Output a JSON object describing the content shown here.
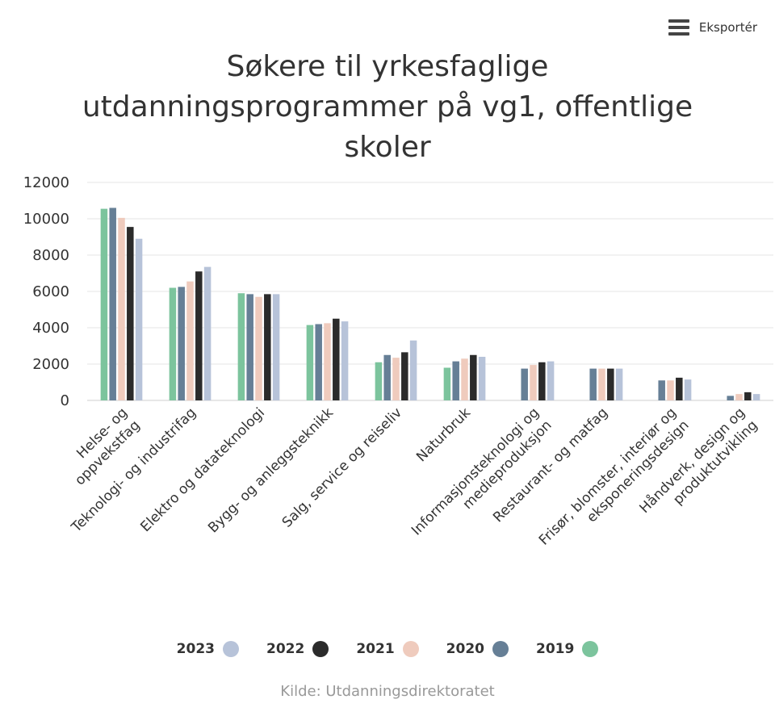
{
  "export": {
    "label": "Eksportér",
    "icon": "hamburger-menu-icon"
  },
  "source": "Kilde: Utdanningsdirektoratet",
  "chart_data": {
    "type": "bar",
    "title": "Søkere til yrkesfaglige utdanningsprogrammer på vg1, offentlige skoler",
    "title_lines": [
      "Søkere til yrkesfaglige",
      "utdanningsprogrammer på vg1, offentlige",
      "skoler"
    ],
    "xlabel": "",
    "ylabel": "",
    "ylim": [
      0,
      12000
    ],
    "yticks": [
      0,
      2000,
      4000,
      6000,
      8000,
      10000,
      12000
    ],
    "grid": true,
    "legend_position": "bottom",
    "categories": [
      "Helse- og oppvekstfag",
      "Teknologi- og industrifag",
      "Elektro og datateknologi",
      "Bygg- og anleggsteknikk",
      "Salg, service og reiseliv",
      "Naturbruk",
      "Informasjonsteknologi og medieproduksjon",
      "Restaurant- og matfag",
      "Frisør, blomster, interiør og eksponeringsdesign",
      "Håndverk, design og produktutvikling"
    ],
    "category_lines": [
      [
        "Helse- og",
        "oppvekstfag"
      ],
      [
        "Teknologi- og industrifag"
      ],
      [
        "Elektro og datateknologi"
      ],
      [
        "Bygg- og anleggsteknikk"
      ],
      [
        "Salg, service og reiseliv"
      ],
      [
        "Naturbruk"
      ],
      [
        "Informasjonsteknologi og",
        "medieproduksjon"
      ],
      [
        "Restaurant- og matfag"
      ],
      [
        "Frisør, blomster, interiør og",
        "eksponeringsdesign"
      ],
      [
        "Håndverk, design og",
        "produktutvikling"
      ]
    ],
    "series": [
      {
        "name": "2019",
        "color": "#7cc49d",
        "values": [
          10550,
          6200,
          5900,
          4150,
          2100,
          1800,
          null,
          null,
          null,
          null
        ]
      },
      {
        "name": "2020",
        "color": "#667f96",
        "values": [
          10600,
          6250,
          5850,
          4200,
          2500,
          2150,
          1750,
          1750,
          1100,
          250
        ]
      },
      {
        "name": "2021",
        "color": "#efcbbd",
        "values": [
          10050,
          6550,
          5700,
          4250,
          2350,
          2300,
          1950,
          1750,
          1100,
          350
        ]
      },
      {
        "name": "2022",
        "color": "#2b2b2b",
        "values": [
          9550,
          7100,
          5850,
          4500,
          2650,
          2500,
          2100,
          1750,
          1250,
          450
        ]
      },
      {
        "name": "2023",
        "color": "#b7c3d9",
        "values": [
          8900,
          7350,
          5850,
          4350,
          3300,
          2400,
          2150,
          1750,
          1150,
          350
        ]
      }
    ],
    "legend_order": [
      "2023",
      "2022",
      "2021",
      "2020",
      "2019"
    ]
  }
}
